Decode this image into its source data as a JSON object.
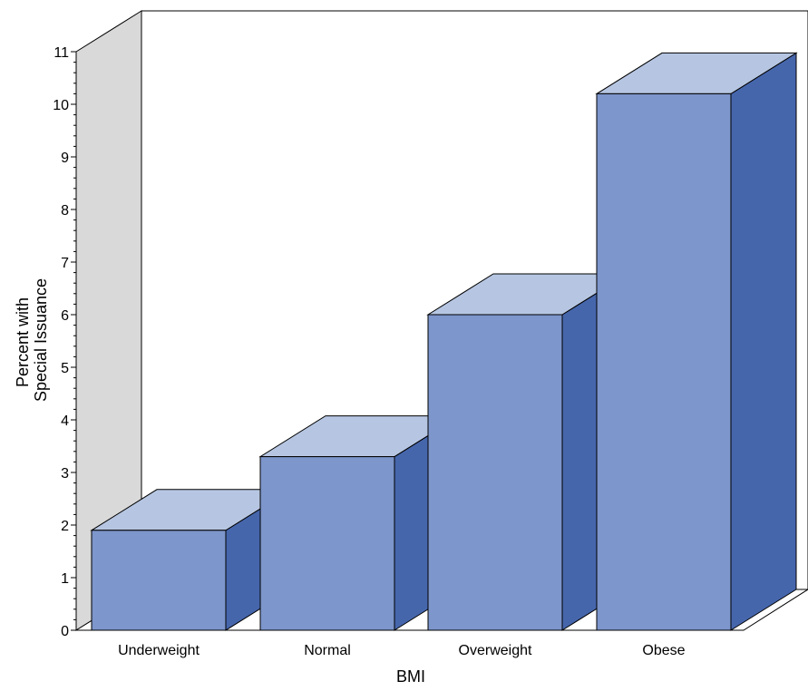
{
  "chart_data": {
    "type": "bar",
    "title": "",
    "xlabel": "BMI",
    "ylabel_lines": [
      "Percent with",
      "Special Issuance"
    ],
    "categories": [
      "Underweight",
      "Normal",
      "Overweight",
      "Obese"
    ],
    "values": [
      1.9,
      3.3,
      6.0,
      10.2
    ],
    "ylim": [
      0,
      11
    ],
    "yticks": [
      0,
      1,
      2,
      3,
      4,
      5,
      6,
      7,
      8,
      9,
      10,
      11
    ],
    "grid": false,
    "legend": "none",
    "style": "3d",
    "colors": {
      "bar_front": "#7d96cb",
      "bar_top": "#b6c6e2",
      "bar_side": "#4666ac",
      "back_wall": "#d9d9d9",
      "outline": "#000000"
    }
  }
}
